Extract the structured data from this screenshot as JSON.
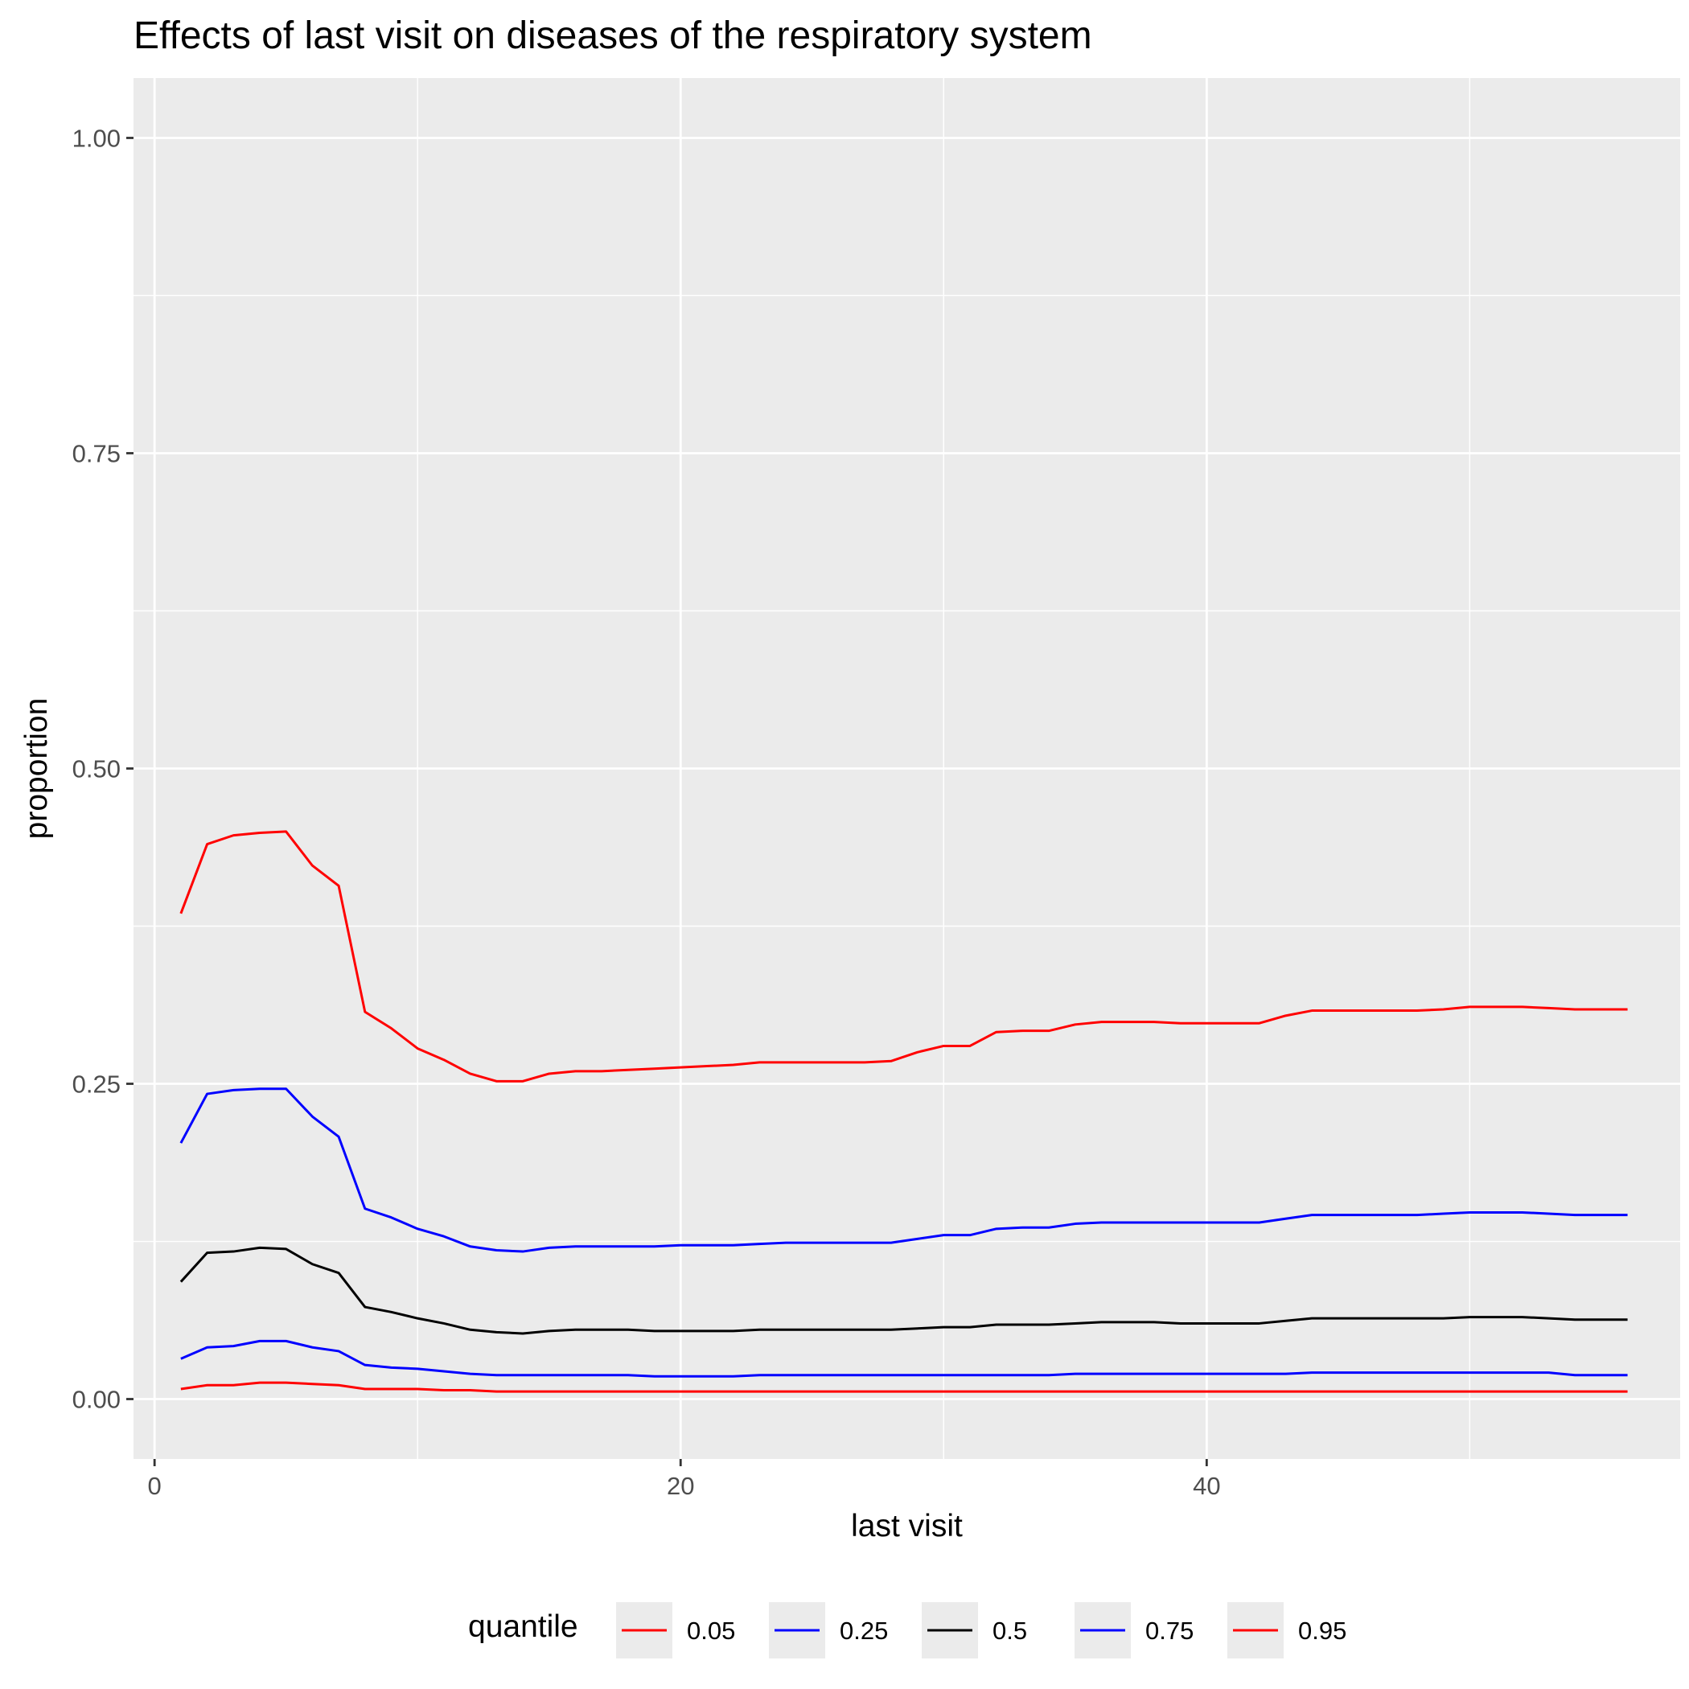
{
  "chart_data": {
    "type": "line",
    "title": "Effects of last visit on diseases of the respiratory system",
    "xlabel": "last visit",
    "ylabel": "proportion",
    "xlim": [
      -0.8,
      58.0
    ],
    "ylim": [
      -0.0475,
      1.0475
    ],
    "x_ticks": [
      0,
      20,
      40
    ],
    "x_tick_labels": [
      "0",
      "20",
      "40"
    ],
    "y_ticks": [
      0.0,
      0.25,
      0.5,
      0.75,
      1.0
    ],
    "y_tick_labels": [
      "0.00",
      "0.25",
      "0.50",
      "0.75",
      "1.00"
    ],
    "grid": true,
    "legend_title": "quantile",
    "legend_position": "bottom",
    "x": [
      1,
      2,
      3,
      4,
      5,
      6,
      7,
      8,
      9,
      10,
      11,
      12,
      13,
      14,
      15,
      16,
      17,
      18,
      19,
      20,
      21,
      22,
      23,
      24,
      25,
      26,
      27,
      28,
      29,
      30,
      31,
      32,
      33,
      34,
      35,
      36,
      37,
      38,
      39,
      40,
      41,
      42,
      43,
      44,
      45,
      46,
      47,
      48,
      49,
      50,
      51,
      52,
      53,
      54,
      55,
      56
    ],
    "series": [
      {
        "name": "0.05",
        "color": "#ff0000",
        "values": [
          0.385,
          0.44,
          0.447,
          0.449,
          0.45,
          0.423,
          0.407,
          0.307,
          0.294,
          0.278,
          0.269,
          0.258,
          0.252,
          0.252,
          0.258,
          0.26,
          0.26,
          0.261,
          0.262,
          0.263,
          0.264,
          0.265,
          0.267,
          0.267,
          0.267,
          0.267,
          0.267,
          0.268,
          0.275,
          0.28,
          0.28,
          0.291,
          0.292,
          0.292,
          0.297,
          0.299,
          0.299,
          0.299,
          0.298,
          0.298,
          0.298,
          0.298,
          0.304,
          0.308,
          0.308,
          0.308,
          0.308,
          0.308,
          0.309,
          0.311,
          0.311,
          0.311,
          0.31,
          0.309,
          0.309,
          0.309
        ]
      },
      {
        "name": "0.25",
        "color": "#0000ff",
        "values": [
          0.203,
          0.242,
          0.245,
          0.246,
          0.246,
          0.224,
          0.208,
          0.151,
          0.144,
          0.135,
          0.129,
          0.121,
          0.118,
          0.117,
          0.12,
          0.121,
          0.121,
          0.121,
          0.121,
          0.122,
          0.122,
          0.122,
          0.123,
          0.124,
          0.124,
          0.124,
          0.124,
          0.124,
          0.127,
          0.13,
          0.13,
          0.135,
          0.136,
          0.136,
          0.139,
          0.14,
          0.14,
          0.14,
          0.14,
          0.14,
          0.14,
          0.14,
          0.143,
          0.146,
          0.146,
          0.146,
          0.146,
          0.146,
          0.147,
          0.148,
          0.148,
          0.148,
          0.147,
          0.146,
          0.146,
          0.146
        ]
      },
      {
        "name": "0.5",
        "color": "#000000",
        "values": [
          0.093,
          0.116,
          0.117,
          0.12,
          0.119,
          0.107,
          0.1,
          0.073,
          0.069,
          0.064,
          0.06,
          0.055,
          0.053,
          0.052,
          0.054,
          0.055,
          0.055,
          0.055,
          0.054,
          0.054,
          0.054,
          0.054,
          0.055,
          0.055,
          0.055,
          0.055,
          0.055,
          0.055,
          0.056,
          0.057,
          0.057,
          0.059,
          0.059,
          0.059,
          0.06,
          0.061,
          0.061,
          0.061,
          0.06,
          0.06,
          0.06,
          0.06,
          0.062,
          0.064,
          0.064,
          0.064,
          0.064,
          0.064,
          0.064,
          0.065,
          0.065,
          0.065,
          0.064,
          0.063,
          0.063,
          0.063
        ]
      },
      {
        "name": "0.75",
        "color": "#0000ff",
        "values": [
          0.032,
          0.041,
          0.042,
          0.046,
          0.046,
          0.041,
          0.038,
          0.027,
          0.025,
          0.024,
          0.022,
          0.02,
          0.019,
          0.019,
          0.019,
          0.019,
          0.019,
          0.019,
          0.018,
          0.018,
          0.018,
          0.018,
          0.019,
          0.019,
          0.019,
          0.019,
          0.019,
          0.019,
          0.019,
          0.019,
          0.019,
          0.019,
          0.019,
          0.019,
          0.02,
          0.02,
          0.02,
          0.02,
          0.02,
          0.02,
          0.02,
          0.02,
          0.02,
          0.021,
          0.021,
          0.021,
          0.021,
          0.021,
          0.021,
          0.021,
          0.021,
          0.021,
          0.021,
          0.019,
          0.019,
          0.019
        ]
      },
      {
        "name": "0.95",
        "color": "#ff0000",
        "values": [
          0.008,
          0.011,
          0.011,
          0.013,
          0.013,
          0.012,
          0.011,
          0.008,
          0.008,
          0.008,
          0.007,
          0.007,
          0.006,
          0.006,
          0.006,
          0.006,
          0.006,
          0.006,
          0.006,
          0.006,
          0.006,
          0.006,
          0.006,
          0.006,
          0.006,
          0.006,
          0.006,
          0.006,
          0.006,
          0.006,
          0.006,
          0.006,
          0.006,
          0.006,
          0.006,
          0.006,
          0.006,
          0.006,
          0.006,
          0.006,
          0.006,
          0.006,
          0.006,
          0.006,
          0.006,
          0.006,
          0.006,
          0.006,
          0.006,
          0.006,
          0.006,
          0.006,
          0.006,
          0.006,
          0.006,
          0.006
        ]
      }
    ]
  }
}
